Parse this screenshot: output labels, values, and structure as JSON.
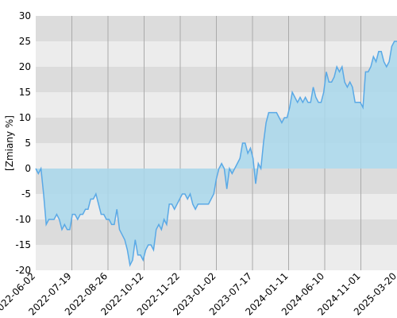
{
  "chart_data": {
    "type": "area",
    "ylabel": "[Zmiany %]",
    "xlabel": "",
    "ylim": [
      -20,
      30
    ],
    "y_ticks": [
      30,
      25,
      20,
      15,
      10,
      5,
      0,
      -5,
      -10,
      -15,
      -20
    ],
    "x_tick_labels": [
      "2022-06-02",
      "2022-07-19",
      "2022-08-26",
      "2022-10-12",
      "2022-11-22",
      "2023-01-02",
      "2023-07-17",
      "2024-01-11",
      "2024-06-10",
      "2024-11-01",
      "2025-03-20"
    ],
    "grid": "bands",
    "colors": {
      "line": "#5aa9e6",
      "fill": "#a9d8ec",
      "band_dark": "#dcdcdc",
      "band_light": "#ececec",
      "grid_line": "#aaaaaa"
    },
    "series": [
      {
        "values": [
          0,
          -1,
          0,
          -5,
          -11,
          -10,
          -10,
          -10,
          -9,
          -10,
          -12,
          -11,
          -12,
          -12,
          -9,
          -9,
          -10,
          -9,
          -9,
          -8,
          -8,
          -6,
          -6,
          -5,
          -7,
          -9,
          -9,
          -10,
          -10,
          -11,
          -11,
          -8,
          -12,
          -13,
          -14,
          -16,
          -19,
          -18,
          -14,
          -17,
          -17,
          -18,
          -16,
          -15,
          -15,
          -16,
          -12,
          -11,
          -12,
          -10,
          -11,
          -7,
          -7,
          -8,
          -7,
          -6,
          -5,
          -5,
          -6,
          -5,
          -7,
          -8,
          -7,
          -7,
          -7,
          -7,
          -7,
          -6,
          -5,
          -2,
          0,
          1,
          0,
          -4,
          0,
          -1,
          0,
          1,
          2,
          5,
          5,
          3,
          4,
          2,
          -3,
          1,
          0,
          5,
          9,
          11,
          11,
          11,
          11,
          10,
          9,
          10,
          10,
          12,
          15,
          14,
          13,
          14,
          13,
          14,
          13,
          13,
          16,
          14,
          13,
          13,
          15,
          19,
          17,
          17,
          18,
          20,
          19,
          20,
          17,
          16,
          17,
          16,
          13,
          13,
          13,
          12,
          19,
          19,
          20,
          22,
          21,
          23,
          23,
          21,
          20,
          21,
          24,
          25,
          25
        ]
      }
    ]
  }
}
